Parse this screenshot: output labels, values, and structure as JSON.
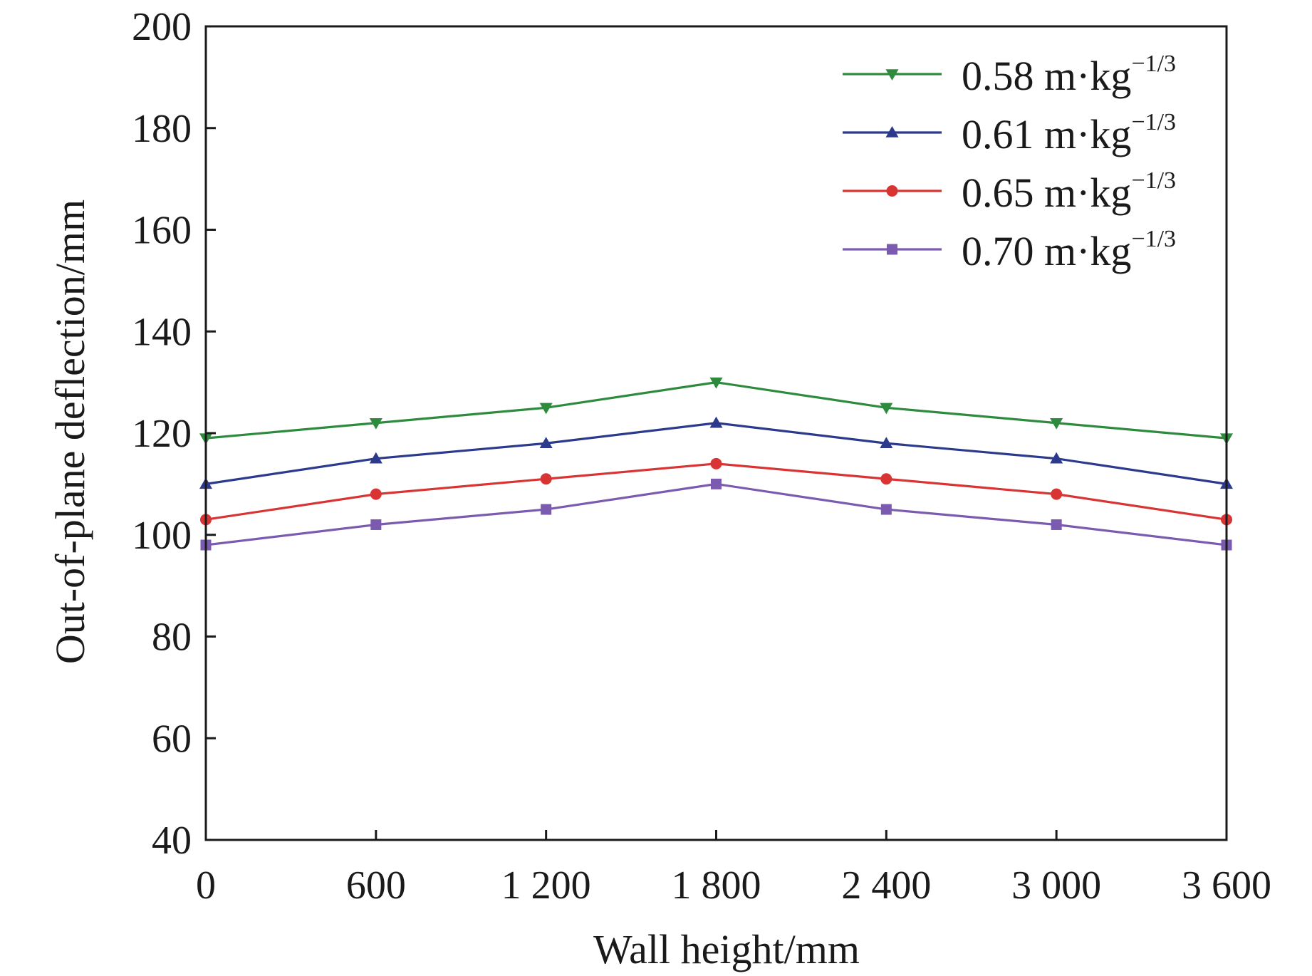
{
  "chart_data": {
    "type": "line",
    "title": "",
    "xlabel": "Wall height/mm",
    "ylabel": "Out-of-plane deflection/mm",
    "x": [
      0,
      600,
      1200,
      1800,
      2400,
      3000,
      3600
    ],
    "x_tick_labels": [
      "0",
      "600",
      "1 200",
      "1 800",
      "2 400",
      "3 000",
      "3 600"
    ],
    "xlim": [
      0,
      3600
    ],
    "ylim": [
      40,
      200
    ],
    "y_ticks": [
      40,
      60,
      80,
      100,
      120,
      140,
      160,
      180,
      200
    ],
    "y_tick_labels": [
      "40",
      "60",
      "80",
      "100",
      "120",
      "140",
      "160",
      "180",
      "200"
    ],
    "grid": false,
    "legend_position": "top-right",
    "series": [
      {
        "name": "0.58 m·kg−1/3",
        "label_main": "0.58 m·kg",
        "label_sup": "−1/3",
        "color": "#2e8b3e",
        "marker": "triangle-down",
        "values": [
          119,
          122,
          125,
          130,
          125,
          122,
          119
        ]
      },
      {
        "name": "0.61 m·kg−1/3",
        "label_main": "0.61 m·kg",
        "label_sup": "−1/3",
        "color": "#2b3a8c",
        "marker": "triangle-up",
        "values": [
          110,
          115,
          118,
          122,
          118,
          115,
          110
        ]
      },
      {
        "name": "0.65 m·kg−1/3",
        "label_main": "0.65 m·kg",
        "label_sup": "−1/3",
        "color": "#d93434",
        "marker": "circle",
        "values": [
          103,
          108,
          111,
          114,
          111,
          108,
          103
        ]
      },
      {
        "name": "0.70 m·kg−1/3",
        "label_main": "0.70 m·kg",
        "label_sup": "−1/3",
        "color": "#7b5bb0",
        "marker": "square",
        "values": [
          98,
          102,
          105,
          110,
          105,
          102,
          98
        ]
      }
    ]
  }
}
